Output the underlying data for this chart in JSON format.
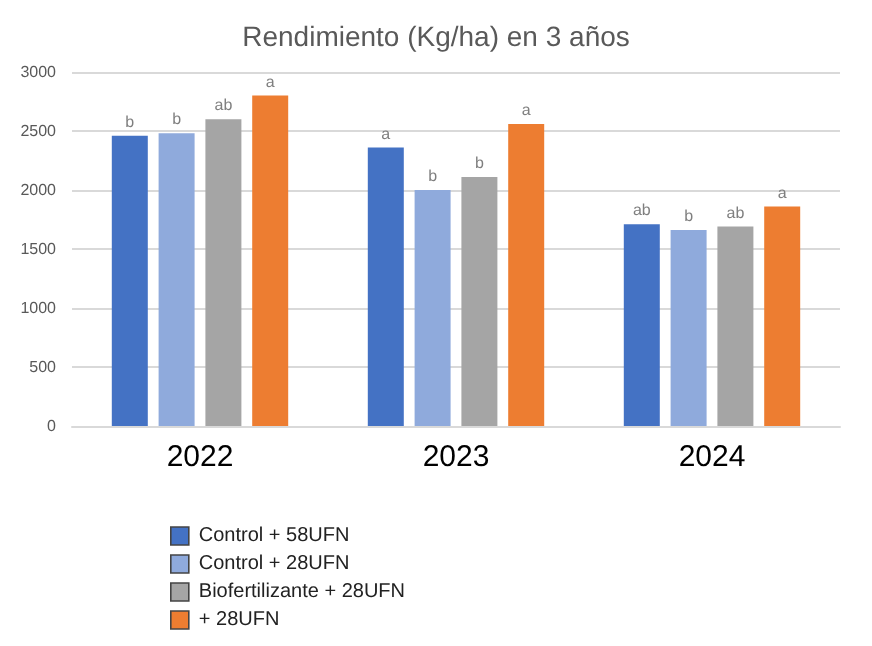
{
  "chart_data": {
    "type": "bar",
    "title": "Rendimiento (Kg/ha) en 3 años",
    "categories": [
      "2022",
      "2023",
      "2024"
    ],
    "series": [
      {
        "name": "Control + 58UFN",
        "color": "#4472c4",
        "values": [
          2460,
          2360,
          1710
        ],
        "value_labels": [
          "b",
          "a",
          "ab"
        ]
      },
      {
        "name": "Control + 28UFN",
        "color": "#8faadc",
        "values": [
          2480,
          2000,
          1660
        ],
        "value_labels": [
          "b",
          "b",
          "b"
        ]
      },
      {
        "name": "Biofertilizante + 28UFN",
        "color": "#a5a5a5",
        "values": [
          2600,
          2110,
          1690
        ],
        "value_labels": [
          "ab",
          "b",
          "ab"
        ]
      },
      {
        "name": "+ 28UFN",
        "color": "#ed7d31",
        "values": [
          2800,
          2560,
          1860
        ],
        "value_labels": [
          "a",
          "a",
          "a"
        ]
      }
    ],
    "ylim": [
      0,
      3000
    ],
    "yticks": [
      0,
      500,
      1000,
      1500,
      2000,
      2500,
      3000
    ],
    "grid": "y",
    "legend": "bottom left"
  }
}
